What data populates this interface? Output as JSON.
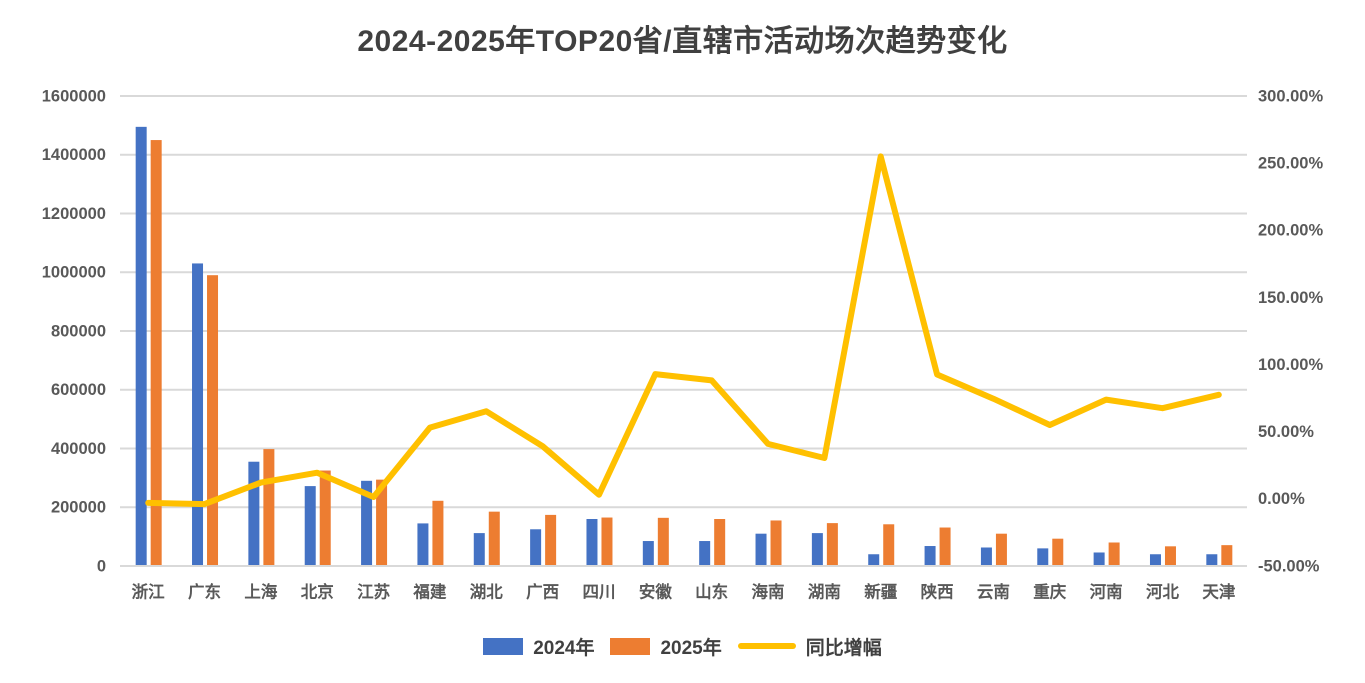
{
  "title": "2024-2025年TOP20省/直辖市活动场次趋势变化",
  "chart_data": {
    "type": "combo (bar + line)",
    "categories": [
      "浙江",
      "广东",
      "上海",
      "北京",
      "江苏",
      "福建",
      "湖北",
      "广西",
      "四川",
      "安徽",
      "山东",
      "海南",
      "湖南",
      "新疆",
      "陕西",
      "云南",
      "重庆",
      "河南",
      "河北",
      "天津"
    ],
    "series": [
      {
        "name": "2024年",
        "type": "bar",
        "axis": "left",
        "color": "#4472C4",
        "values": [
          1495000,
          1030000,
          355000,
          272000,
          290000,
          145000,
          112000,
          125000,
          160000,
          85000,
          85000,
          110000,
          112000,
          40000,
          68000,
          63000,
          60000,
          46000,
          40000,
          40000
        ]
      },
      {
        "name": "2025年",
        "type": "bar",
        "axis": "left",
        "color": "#ED7D31",
        "values": [
          1450000,
          990000,
          398000,
          325000,
          294000,
          222000,
          185000,
          174000,
          165000,
          164000,
          160000,
          155000,
          146000,
          142000,
          131000,
          110000,
          93000,
          80000,
          67000,
          71000
        ]
      },
      {
        "name": "同比增幅",
        "type": "line",
        "axis": "right",
        "color": "#FFC000",
        "values_pct": [
          -3.0,
          -3.9,
          12.1,
          19.5,
          1.4,
          53.1,
          65.2,
          39.2,
          3.1,
          92.9,
          88.2,
          40.9,
          30.4,
          255.0,
          92.6,
          74.6,
          55.0,
          73.9,
          67.5,
          77.5
        ]
      }
    ],
    "left_axis": {
      "min": 0,
      "max": 1600000,
      "step": 200000,
      "tick_labels": [
        "1600000",
        "1400000",
        "1200000",
        "1000000",
        "800000",
        "600000",
        "400000",
        "200000",
        "0"
      ]
    },
    "right_axis": {
      "min": -50,
      "max": 300,
      "step": 50,
      "tick_labels": [
        "300.00%",
        "250.00%",
        "200.00%",
        "150.00%",
        "100.00%",
        "50.00%",
        "0.00%",
        "-50.00%"
      ]
    },
    "grid": true,
    "legend_position": "bottom"
  },
  "legend": {
    "items": [
      {
        "label": "2024年",
        "color": "#4472C4",
        "kind": "bar"
      },
      {
        "label": "2025年",
        "color": "#ED7D31",
        "kind": "bar"
      },
      {
        "label": "同比增幅",
        "color": "#FFC000",
        "kind": "line"
      }
    ]
  },
  "colors": {
    "bar_2024": "#4472C4",
    "bar_2025": "#ED7D31",
    "line_growth": "#FFC000",
    "gridline": "#D9D9D9",
    "axis_text": "#595959",
    "title_text": "#404040",
    "background": "#FFFFFF"
  }
}
